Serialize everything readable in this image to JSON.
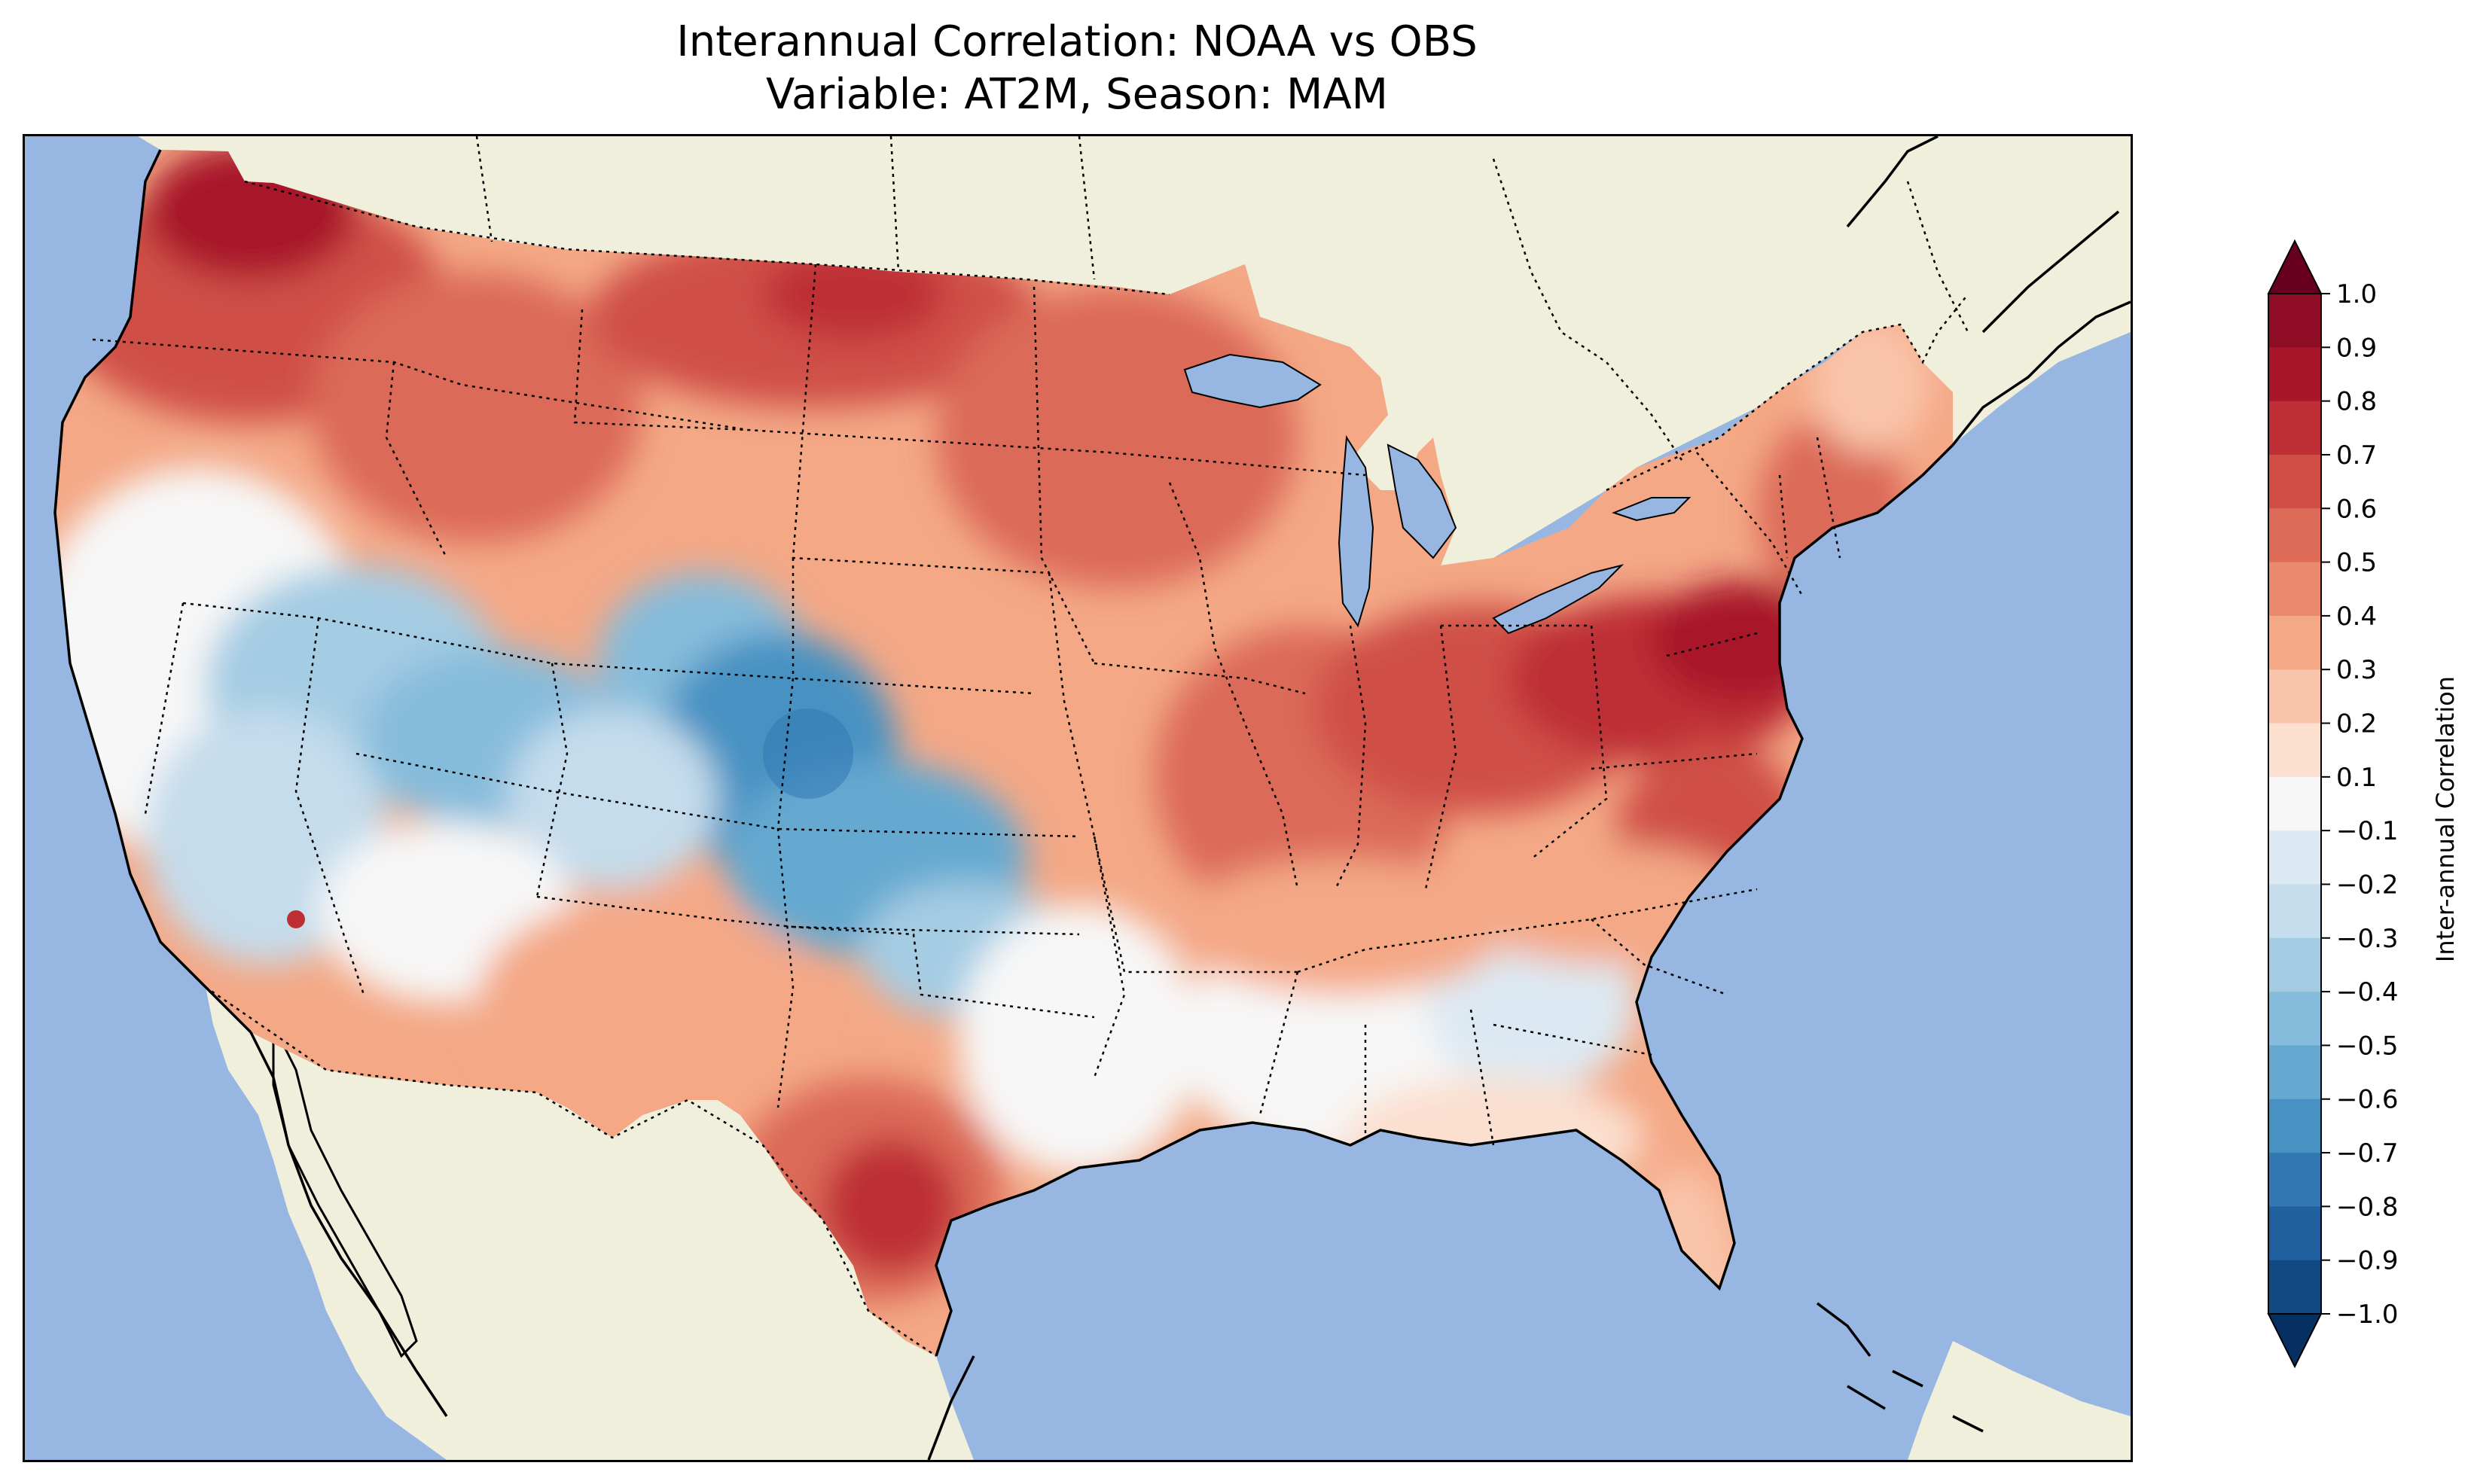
{
  "title": {
    "line1": "Interannual Correlation: NOAA vs OBS",
    "line2": "Variable: AT2M, Season: MAM"
  },
  "colorbar": {
    "label": "Inter-annual Correlation",
    "ticks": [
      "1.0",
      "0.9",
      "0.8",
      "0.7",
      "0.6",
      "0.5",
      "0.4",
      "0.3",
      "0.2",
      "0.1",
      "−0.1",
      "−0.2",
      "−0.3",
      "−0.4",
      "−0.5",
      "−0.6",
      "−0.7",
      "−0.8",
      "−0.9",
      "−1.0"
    ],
    "colors": [
      "#67001f",
      "#8e0d25",
      "#a81529",
      "#be2f35",
      "#cf4f46",
      "#dc6b58",
      "#e9896e",
      "#f4a886",
      "#f9c4a9",
      "#fbdfcf",
      "#f7f7f7",
      "#dde9f2",
      "#c4dcec",
      "#a4cce3",
      "#86bcdb",
      "#65a9d0",
      "#4792c2",
      "#3279b4",
      "#21609f",
      "#134983",
      "#053061"
    ],
    "extend": "both",
    "range": [
      -1.0,
      1.0
    ]
  },
  "map": {
    "projection": "Lambert Conformal (CONUS)",
    "ocean_color": "#97b6e1",
    "land_color": "#efefdb",
    "state_boundaries": "dotted",
    "coastlines": "solid"
  }
}
